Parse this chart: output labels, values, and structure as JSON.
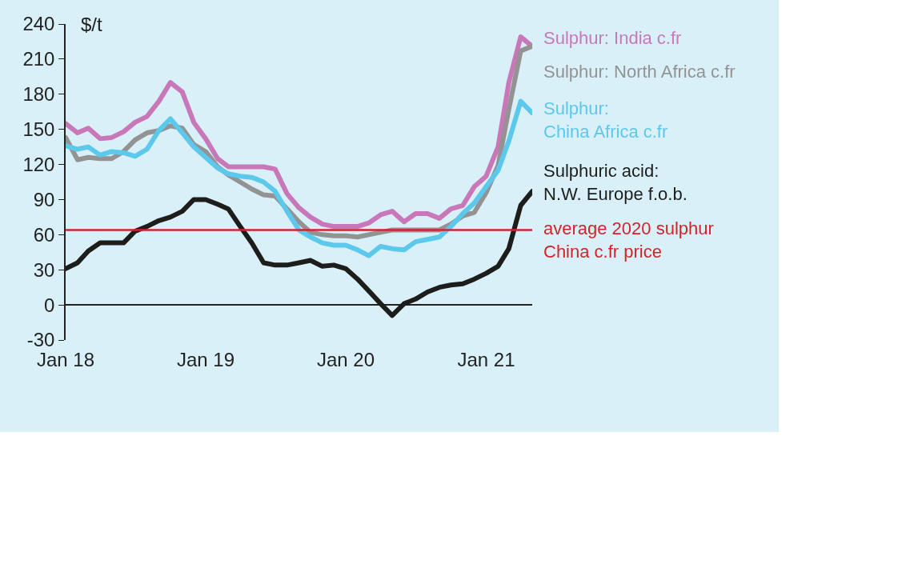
{
  "chart_data": {
    "type": "line",
    "ylabel": "$/t",
    "x": [
      "2018-01",
      "2018-02",
      "2018-03",
      "2018-04",
      "2018-05",
      "2018-06",
      "2018-07",
      "2018-08",
      "2018-09",
      "2018-10",
      "2018-11",
      "2018-12",
      "2019-01",
      "2019-02",
      "2019-03",
      "2019-04",
      "2019-05",
      "2019-06",
      "2019-07",
      "2019-08",
      "2019-09",
      "2019-10",
      "2019-11",
      "2019-12",
      "2020-01",
      "2020-02",
      "2020-03",
      "2020-04",
      "2020-05",
      "2020-06",
      "2020-07",
      "2020-08",
      "2020-09",
      "2020-10",
      "2020-11",
      "2020-12",
      "2021-01",
      "2021-02",
      "2021-03",
      "2021-04",
      "2021-05"
    ],
    "series": [
      {
        "name": "Sulphur: India c.fr",
        "color": "#c878b8",
        "values": [
          155,
          147,
          151,
          142,
          143,
          148,
          156,
          161,
          174,
          190,
          182,
          156,
          142,
          125,
          118,
          118,
          118,
          118,
          116,
          95,
          83,
          75,
          69,
          67,
          67,
          67,
          70,
          77,
          80,
          71,
          78,
          78,
          74,
          82,
          85,
          101,
          110,
          135,
          190,
          229,
          221
        ]
      },
      {
        "name": "Sulphur: North Africa c.fr",
        "color": "#939393",
        "values": [
          143,
          124,
          126,
          125,
          125,
          131,
          141,
          147,
          149,
          153,
          151,
          137,
          131,
          118,
          111,
          105,
          99,
          94,
          93,
          82,
          71,
          62,
          60,
          59,
          59,
          58,
          60,
          62,
          64,
          64,
          64,
          64,
          64,
          69,
          76,
          79,
          96,
          119,
          167,
          217,
          221
        ]
      },
      {
        "name": "Sulphur:\nChina Africa c.fr",
        "color": "#5bc8ec",
        "values": [
          136,
          133,
          135,
          128,
          131,
          130,
          127,
          133,
          149,
          159,
          147,
          135,
          126,
          117,
          112,
          110,
          109,
          105,
          97,
          80,
          64,
          58,
          53,
          51,
          51,
          47,
          42,
          50,
          48,
          47,
          54,
          56,
          58,
          67,
          78,
          87,
          101,
          115,
          140,
          174,
          164
        ]
      },
      {
        "name": "Sulphuric acid:\nN.W. Europe f.o.b.",
        "color": "#1d1d1b",
        "values": [
          31,
          36,
          46,
          53,
          53,
          53,
          63,
          67,
          72,
          75,
          80,
          90,
          90,
          86,
          82,
          67,
          53,
          36,
          34,
          34,
          36,
          38,
          33,
          34,
          31,
          22,
          12,
          1,
          -9,
          1,
          5,
          11,
          15,
          17,
          18,
          22,
          27,
          33,
          48,
          85,
          97
        ]
      }
    ],
    "ref_lines": [
      {
        "axis": "y",
        "value": 64,
        "label": "average 2020 sulphur\nChina c.fr price",
        "color": "#d2232a"
      }
    ],
    "xlim": [
      "2018-01",
      "2021-05"
    ],
    "xticks": [
      {
        "value": "2018-01",
        "label": "Jan 18"
      },
      {
        "value": "2019-01",
        "label": "Jan 19"
      },
      {
        "value": "2020-01",
        "label": "Jan 20"
      },
      {
        "value": "2021-01",
        "label": "Jan 21"
      }
    ],
    "ylim": [
      -30,
      240
    ],
    "yticks": [
      -30,
      0,
      30,
      60,
      90,
      120,
      150,
      180,
      210,
      240
    ],
    "grid": false,
    "legend": "right",
    "marker": "none",
    "line_style": "solid"
  }
}
